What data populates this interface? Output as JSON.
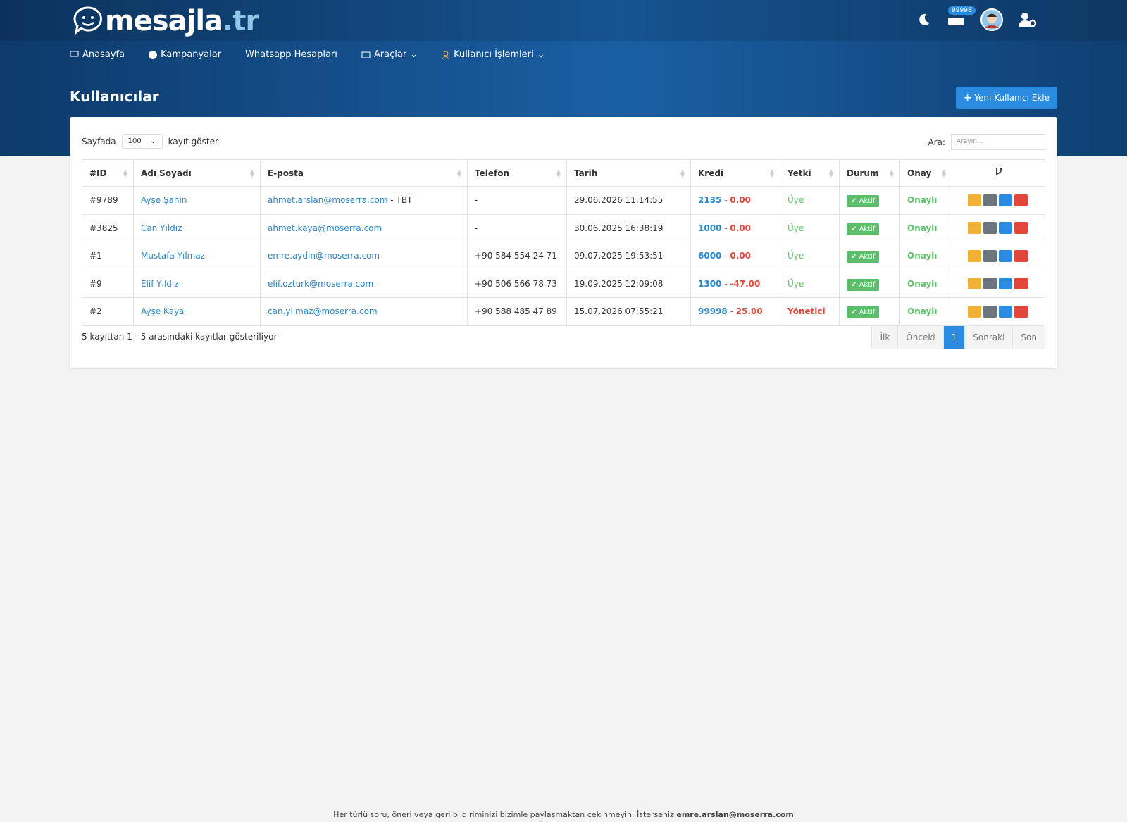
{
  "header": {
    "logo": "mesajla",
    "logo_tld": ".tr",
    "inbox_badge": "99998"
  },
  "nav": [
    "Anasayfa",
    "Kampanyalar",
    "Whatsapp Hesapları",
    "Araçlar",
    "Kullanıcı İşlemleri"
  ],
  "page_title": "Kullanıcılar",
  "add_button": "Yeni Kullanıcı Ekle",
  "controls": {
    "length_prefix": "Sayfada",
    "length_value": "100",
    "length_suffix": "kayıt göster",
    "search_label": "Ara:",
    "search_placeholder": "Arayın..."
  },
  "table": {
    "columns": [
      "#ID",
      "Adı Soyadı",
      "E-posta",
      "Telefon",
      "Tarih",
      "Kredi",
      "Yetki",
      "Durum",
      "Onay"
    ],
    "credit_separator": "-",
    "rows": [
      {
        "id": "#9789",
        "name": "Ayşe Şahin",
        "email": "ahmet.arslan@moserra.com",
        "email_note": "- TBT",
        "phone": "-",
        "date": "29.06.2026 11:14:55",
        "credit": "2135",
        "balance": "0.00",
        "role": "Üye",
        "status": "Aktif",
        "approval": "Onaylı"
      },
      {
        "id": "#3825",
        "name": "Can Yıldız",
        "email": "ahmet.kaya@moserra.com",
        "phone": "-",
        "date": "30.06.2025 16:38:19",
        "credit": "1000",
        "balance": "0.00",
        "role": "Üye",
        "status": "Aktif",
        "approval": "Onaylı"
      },
      {
        "id": "#1",
        "name": "Mustafa Yılmaz",
        "email": "emre.aydin@moserra.com",
        "phone": "+90 584 554 24 71",
        "date": "09.07.2025 19:53:51",
        "credit": "6000",
        "balance": "0.00",
        "role": "Üye",
        "status": "Aktif",
        "approval": "Onaylı"
      },
      {
        "id": "#9",
        "name": "Elif Yıldız",
        "email": "elif.ozturk@moserra.com",
        "phone": "+90 506 566 78 73",
        "date": "19.09.2025 12:09:08",
        "credit": "1300",
        "balance": "-47.00",
        "role": "Üye",
        "status": "Aktif",
        "approval": "Onaylı"
      },
      {
        "id": "#2",
        "name": "Ayşe Kaya",
        "email": "can.yilmaz@moserra.com",
        "phone": "+90 588 485 47 89",
        "date": "15.07.2026 07:55:21",
        "credit": "99998",
        "balance": "25.00",
        "role": "Yönetici",
        "status": "Aktif",
        "approval": "Onaylı"
      }
    ]
  },
  "info": "5 kayıttan 1 - 5 arasındaki kayıtlar gösteriliyor",
  "pagination": [
    "İlk",
    "Önceki",
    "1",
    "Sonraki",
    "Son"
  ],
  "footer": {
    "text": "Her türlü soru, öneri veya geri bildiriminizi bizimle paylaşmaktan çekinmeyin. İsterseniz",
    "email": "emre.arslan@moserra.com"
  }
}
